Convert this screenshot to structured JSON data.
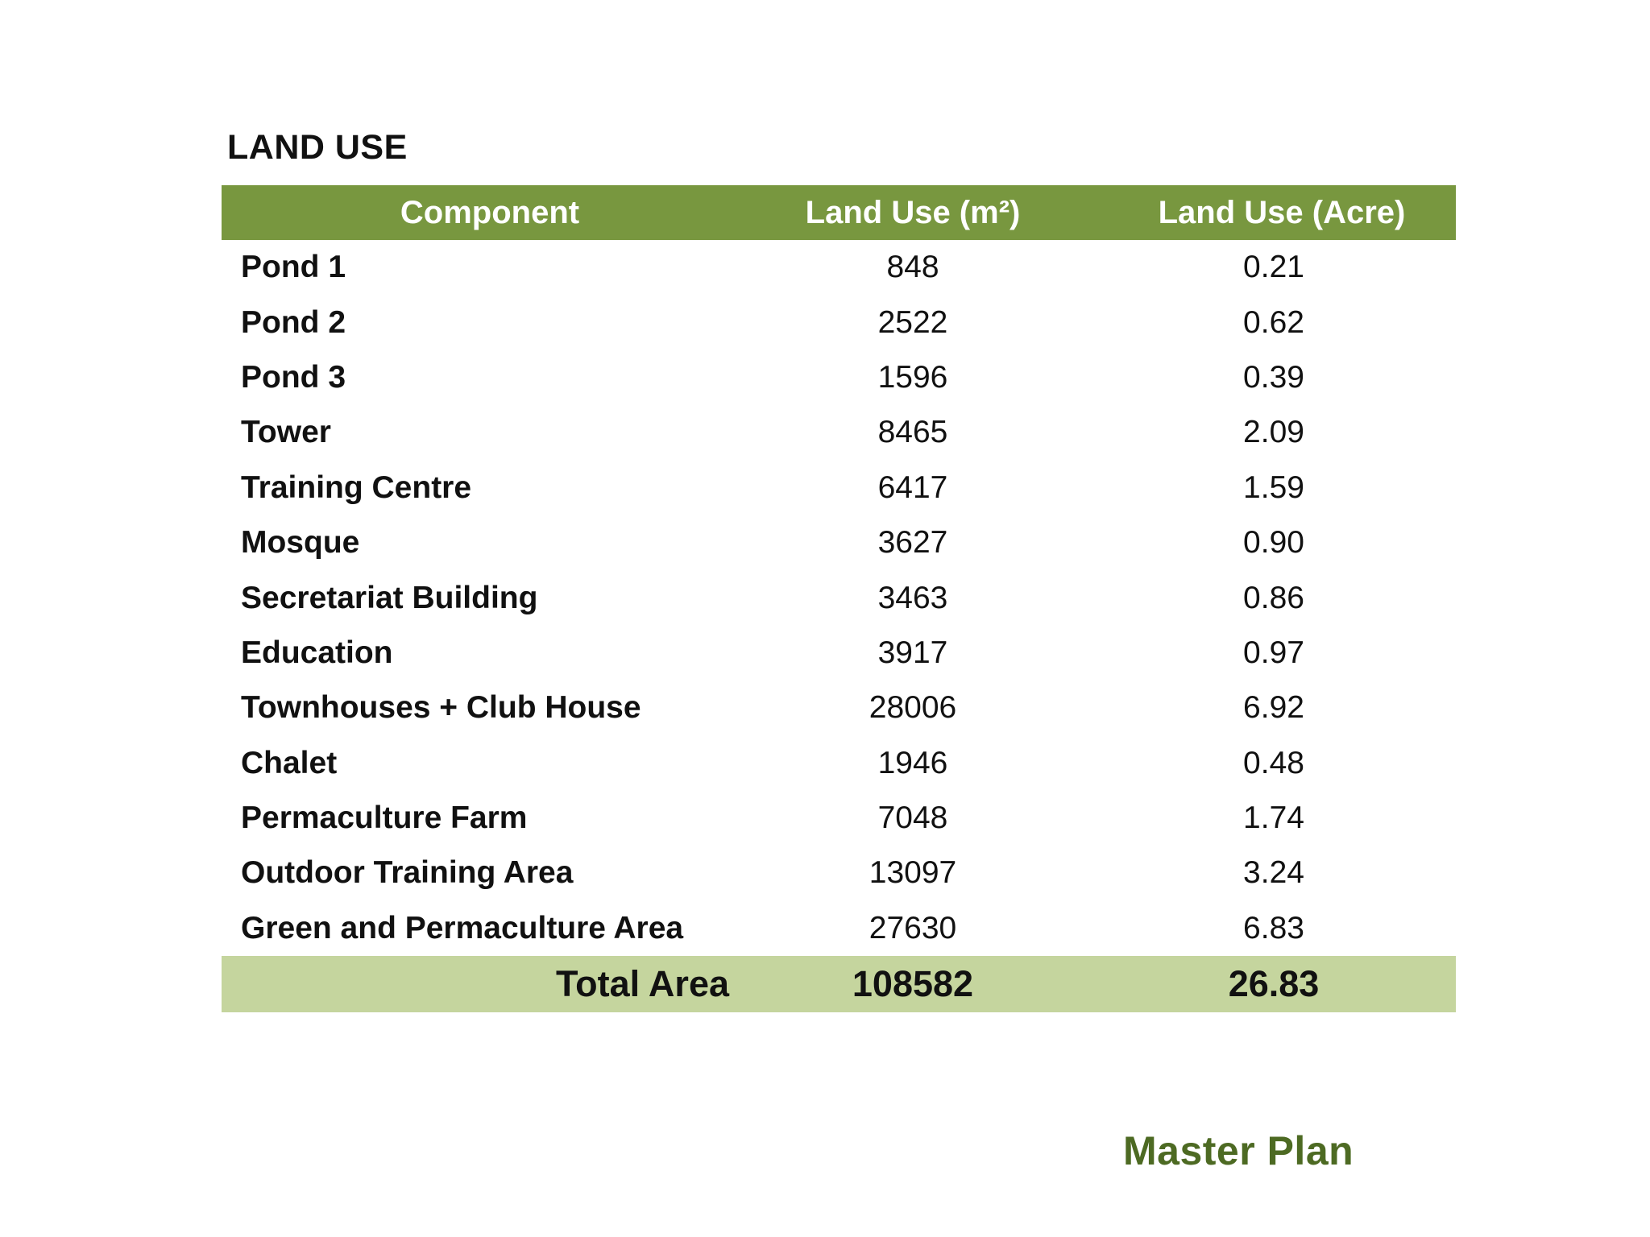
{
  "section_title": "LAND USE",
  "table": {
    "headers": {
      "component": "Component",
      "land_use_m2": "Land Use (m²)",
      "land_use_acre": "Land Use (Acre)"
    },
    "rows": [
      {
        "component": "Pond 1",
        "m2": "848",
        "acre": "0.21"
      },
      {
        "component": "Pond 2",
        "m2": "2522",
        "acre": "0.62"
      },
      {
        "component": "Pond 3",
        "m2": "1596",
        "acre": "0.39"
      },
      {
        "component": "Tower",
        "m2": "8465",
        "acre": "2.09"
      },
      {
        "component": "Training Centre",
        "m2": "6417",
        "acre": "1.59"
      },
      {
        "component": "Mosque",
        "m2": "3627",
        "acre": "0.90"
      },
      {
        "component": "Secretariat Building",
        "m2": "3463",
        "acre": "0.86"
      },
      {
        "component": "Education",
        "m2": "3917",
        "acre": "0.97"
      },
      {
        "component": "Townhouses + Club House",
        "m2": "28006",
        "acre": "6.92"
      },
      {
        "component": "Chalet",
        "m2": "1946",
        "acre": "0.48"
      },
      {
        "component": "Permaculture Farm",
        "m2": "7048",
        "acre": "1.74"
      },
      {
        "component": "Outdoor Training Area",
        "m2": "13097",
        "acre": "3.24"
      },
      {
        "component": "Green and Permaculture Area",
        "m2": "27630",
        "acre": "6.83"
      }
    ],
    "total": {
      "label": "Total Area",
      "m2": "108582",
      "acre": "26.83"
    }
  },
  "footer": {
    "label": "Master Plan"
  },
  "colors": {
    "header_bg": "#78973f",
    "total_bg": "#c5d59e",
    "footer_text": "#4d6a23"
  }
}
